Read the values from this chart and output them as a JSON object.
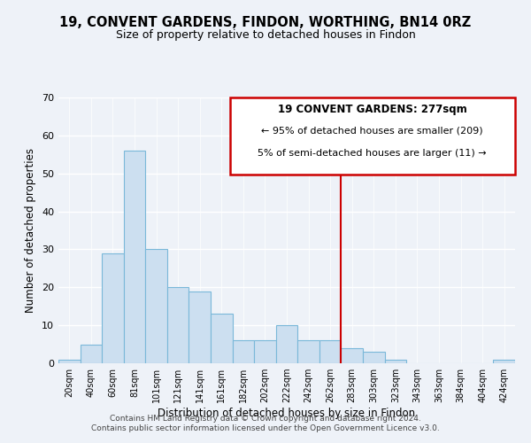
{
  "title": "19, CONVENT GARDENS, FINDON, WORTHING, BN14 0RZ",
  "subtitle": "Size of property relative to detached houses in Findon",
  "xlabel": "Distribution of detached houses by size in Findon",
  "ylabel": "Number of detached properties",
  "bar_labels": [
    "20sqm",
    "40sqm",
    "60sqm",
    "81sqm",
    "101sqm",
    "121sqm",
    "141sqm",
    "161sqm",
    "182sqm",
    "202sqm",
    "222sqm",
    "242sqm",
    "262sqm",
    "283sqm",
    "303sqm",
    "323sqm",
    "343sqm",
    "363sqm",
    "384sqm",
    "404sqm",
    "424sqm"
  ],
  "bar_values": [
    1,
    5,
    29,
    56,
    30,
    20,
    19,
    13,
    6,
    6,
    10,
    6,
    6,
    4,
    3,
    1,
    0,
    0,
    0,
    0,
    1
  ],
  "bar_color": "#ccdff0",
  "bar_edge_color": "#7ab8d9",
  "vline_x": 12.5,
  "vline_color": "#cc0000",
  "ylim": [
    0,
    70
  ],
  "yticks": [
    0,
    10,
    20,
    30,
    40,
    50,
    60,
    70
  ],
  "legend_title": "19 CONVENT GARDENS: 277sqm",
  "legend_line1": "← 95% of detached houses are smaller (209)",
  "legend_line2": "5% of semi-detached houses are larger (11) →",
  "legend_box_color": "#ffffff",
  "legend_edge_color": "#cc0000",
  "footer_line1": "Contains HM Land Registry data © Crown copyright and database right 2024.",
  "footer_line2": "Contains public sector information licensed under the Open Government Licence v3.0.",
  "bg_color": "#eef2f8"
}
